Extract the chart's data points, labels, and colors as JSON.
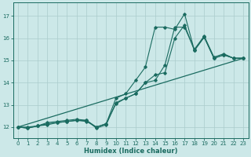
{
  "xlabel": "Humidex (Indice chaleur)",
  "background_color": "#cce8e8",
  "grid_color": "#aacccc",
  "line_color": "#1a6b60",
  "xlim": [
    -0.5,
    23.5
  ],
  "ylim": [
    11.5,
    17.6
  ],
  "yticks": [
    12,
    13,
    14,
    15,
    16,
    17
  ],
  "xticks": [
    0,
    1,
    2,
    3,
    4,
    5,
    6,
    7,
    8,
    9,
    10,
    11,
    12,
    13,
    14,
    15,
    16,
    17,
    18,
    19,
    20,
    21,
    22,
    23
  ],
  "series": [
    {
      "x": [
        0,
        1,
        2,
        3,
        4,
        5,
        6,
        7,
        8,
        9,
        10,
        11,
        12,
        13,
        14,
        15,
        16,
        17,
        18,
        19,
        20,
        21,
        22,
        23
      ],
      "y": [
        12.0,
        11.95,
        12.05,
        12.2,
        12.25,
        12.3,
        12.35,
        12.3,
        11.95,
        12.1,
        13.1,
        13.3,
        13.5,
        14.0,
        14.1,
        14.8,
        16.5,
        16.5,
        15.5,
        16.1,
        15.15,
        15.3,
        15.1,
        15.1
      ],
      "has_markers": true
    },
    {
      "x": [
        0,
        1,
        2,
        3,
        4,
        5,
        6,
        7,
        8,
        9,
        10,
        11,
        12,
        13,
        14,
        15,
        16,
        17,
        18,
        19,
        20,
        21,
        22,
        23
      ],
      "y": [
        12.0,
        11.95,
        12.05,
        12.15,
        12.2,
        12.25,
        12.3,
        12.3,
        12.0,
        12.15,
        13.3,
        13.5,
        14.1,
        14.7,
        16.5,
        16.5,
        16.4,
        17.1,
        15.45,
        16.05,
        15.1,
        15.25,
        15.1,
        15.1
      ],
      "has_markers": true
    },
    {
      "x": [
        0,
        23
      ],
      "y": [
        12.0,
        15.1
      ],
      "has_markers": false
    },
    {
      "x": [
        0,
        1,
        2,
        3,
        4,
        5,
        6,
        7,
        8,
        9,
        10,
        11,
        12,
        13,
        14,
        15,
        16,
        17,
        18,
        19,
        20,
        21,
        22,
        23
      ],
      "y": [
        12.0,
        12.0,
        12.05,
        12.1,
        12.2,
        12.25,
        12.3,
        12.25,
        12.0,
        12.15,
        13.05,
        13.3,
        13.5,
        14.0,
        14.35,
        14.45,
        16.0,
        16.6,
        15.45,
        16.05,
        15.1,
        15.25,
        15.1,
        15.1
      ],
      "has_markers": true
    }
  ]
}
